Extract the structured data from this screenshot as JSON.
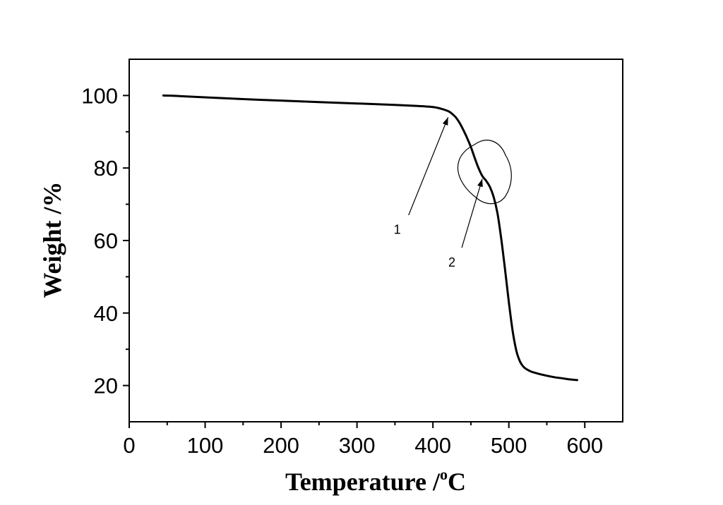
{
  "chart_data": {
    "type": "line",
    "title": "",
    "xlabel": "Temperature /",
    "xlabel_unit_sup": "o",
    "xlabel_unit": "C",
    "ylabel": "Weight /%",
    "xlim": [
      0,
      650
    ],
    "ylim": [
      10,
      110
    ],
    "x_ticks": [
      0,
      100,
      200,
      300,
      400,
      500,
      600
    ],
    "x_tick_labels": [
      "0",
      "100",
      "200",
      "300",
      "400",
      "500",
      "600"
    ],
    "y_ticks": [
      20,
      40,
      60,
      80,
      100
    ],
    "y_tick_labels": [
      "20",
      "40",
      "60",
      "80",
      "100"
    ],
    "x_minor_ticks": [
      50,
      150,
      250,
      350,
      450,
      550
    ],
    "y_minor_ticks": [
      30,
      50,
      70,
      90
    ],
    "grid": false,
    "series": [
      {
        "color": "#000000",
        "x": [
          45,
          60,
          100,
          150,
          200,
          250,
          300,
          350,
          380,
          400,
          410,
          420,
          425,
          430,
          435,
          440,
          445,
          450,
          455,
          460,
          465,
          470,
          475,
          480,
          485,
          490,
          495,
          500,
          505,
          510,
          515,
          520,
          525,
          530,
          540,
          550,
          560,
          570,
          580,
          590
        ],
        "y": [
          100,
          99.9,
          99.5,
          99.0,
          98.6,
          98.2,
          97.8,
          97.4,
          97.1,
          96.8,
          96.4,
          95.7,
          95.0,
          94.0,
          92.5,
          90.5,
          88.3,
          85.8,
          82.8,
          80.0,
          77.8,
          76.5,
          74.8,
          72.0,
          67.5,
          60.5,
          52.0,
          43.0,
          35.0,
          29.5,
          26.5,
          25.0,
          24.3,
          23.8,
          23.2,
          22.7,
          22.3,
          22.0,
          21.7,
          21.5
        ]
      }
    ],
    "annotations": [
      {
        "label": "1",
        "text_x": 353,
        "text_y": 63,
        "arrow_from": [
          368,
          67
        ],
        "arrow_to": [
          420,
          94
        ]
      },
      {
        "label": "2",
        "text_x": 425,
        "text_y": 54,
        "arrow_from": [
          438,
          58
        ],
        "arrow_to": [
          465,
          77
        ]
      }
    ]
  }
}
